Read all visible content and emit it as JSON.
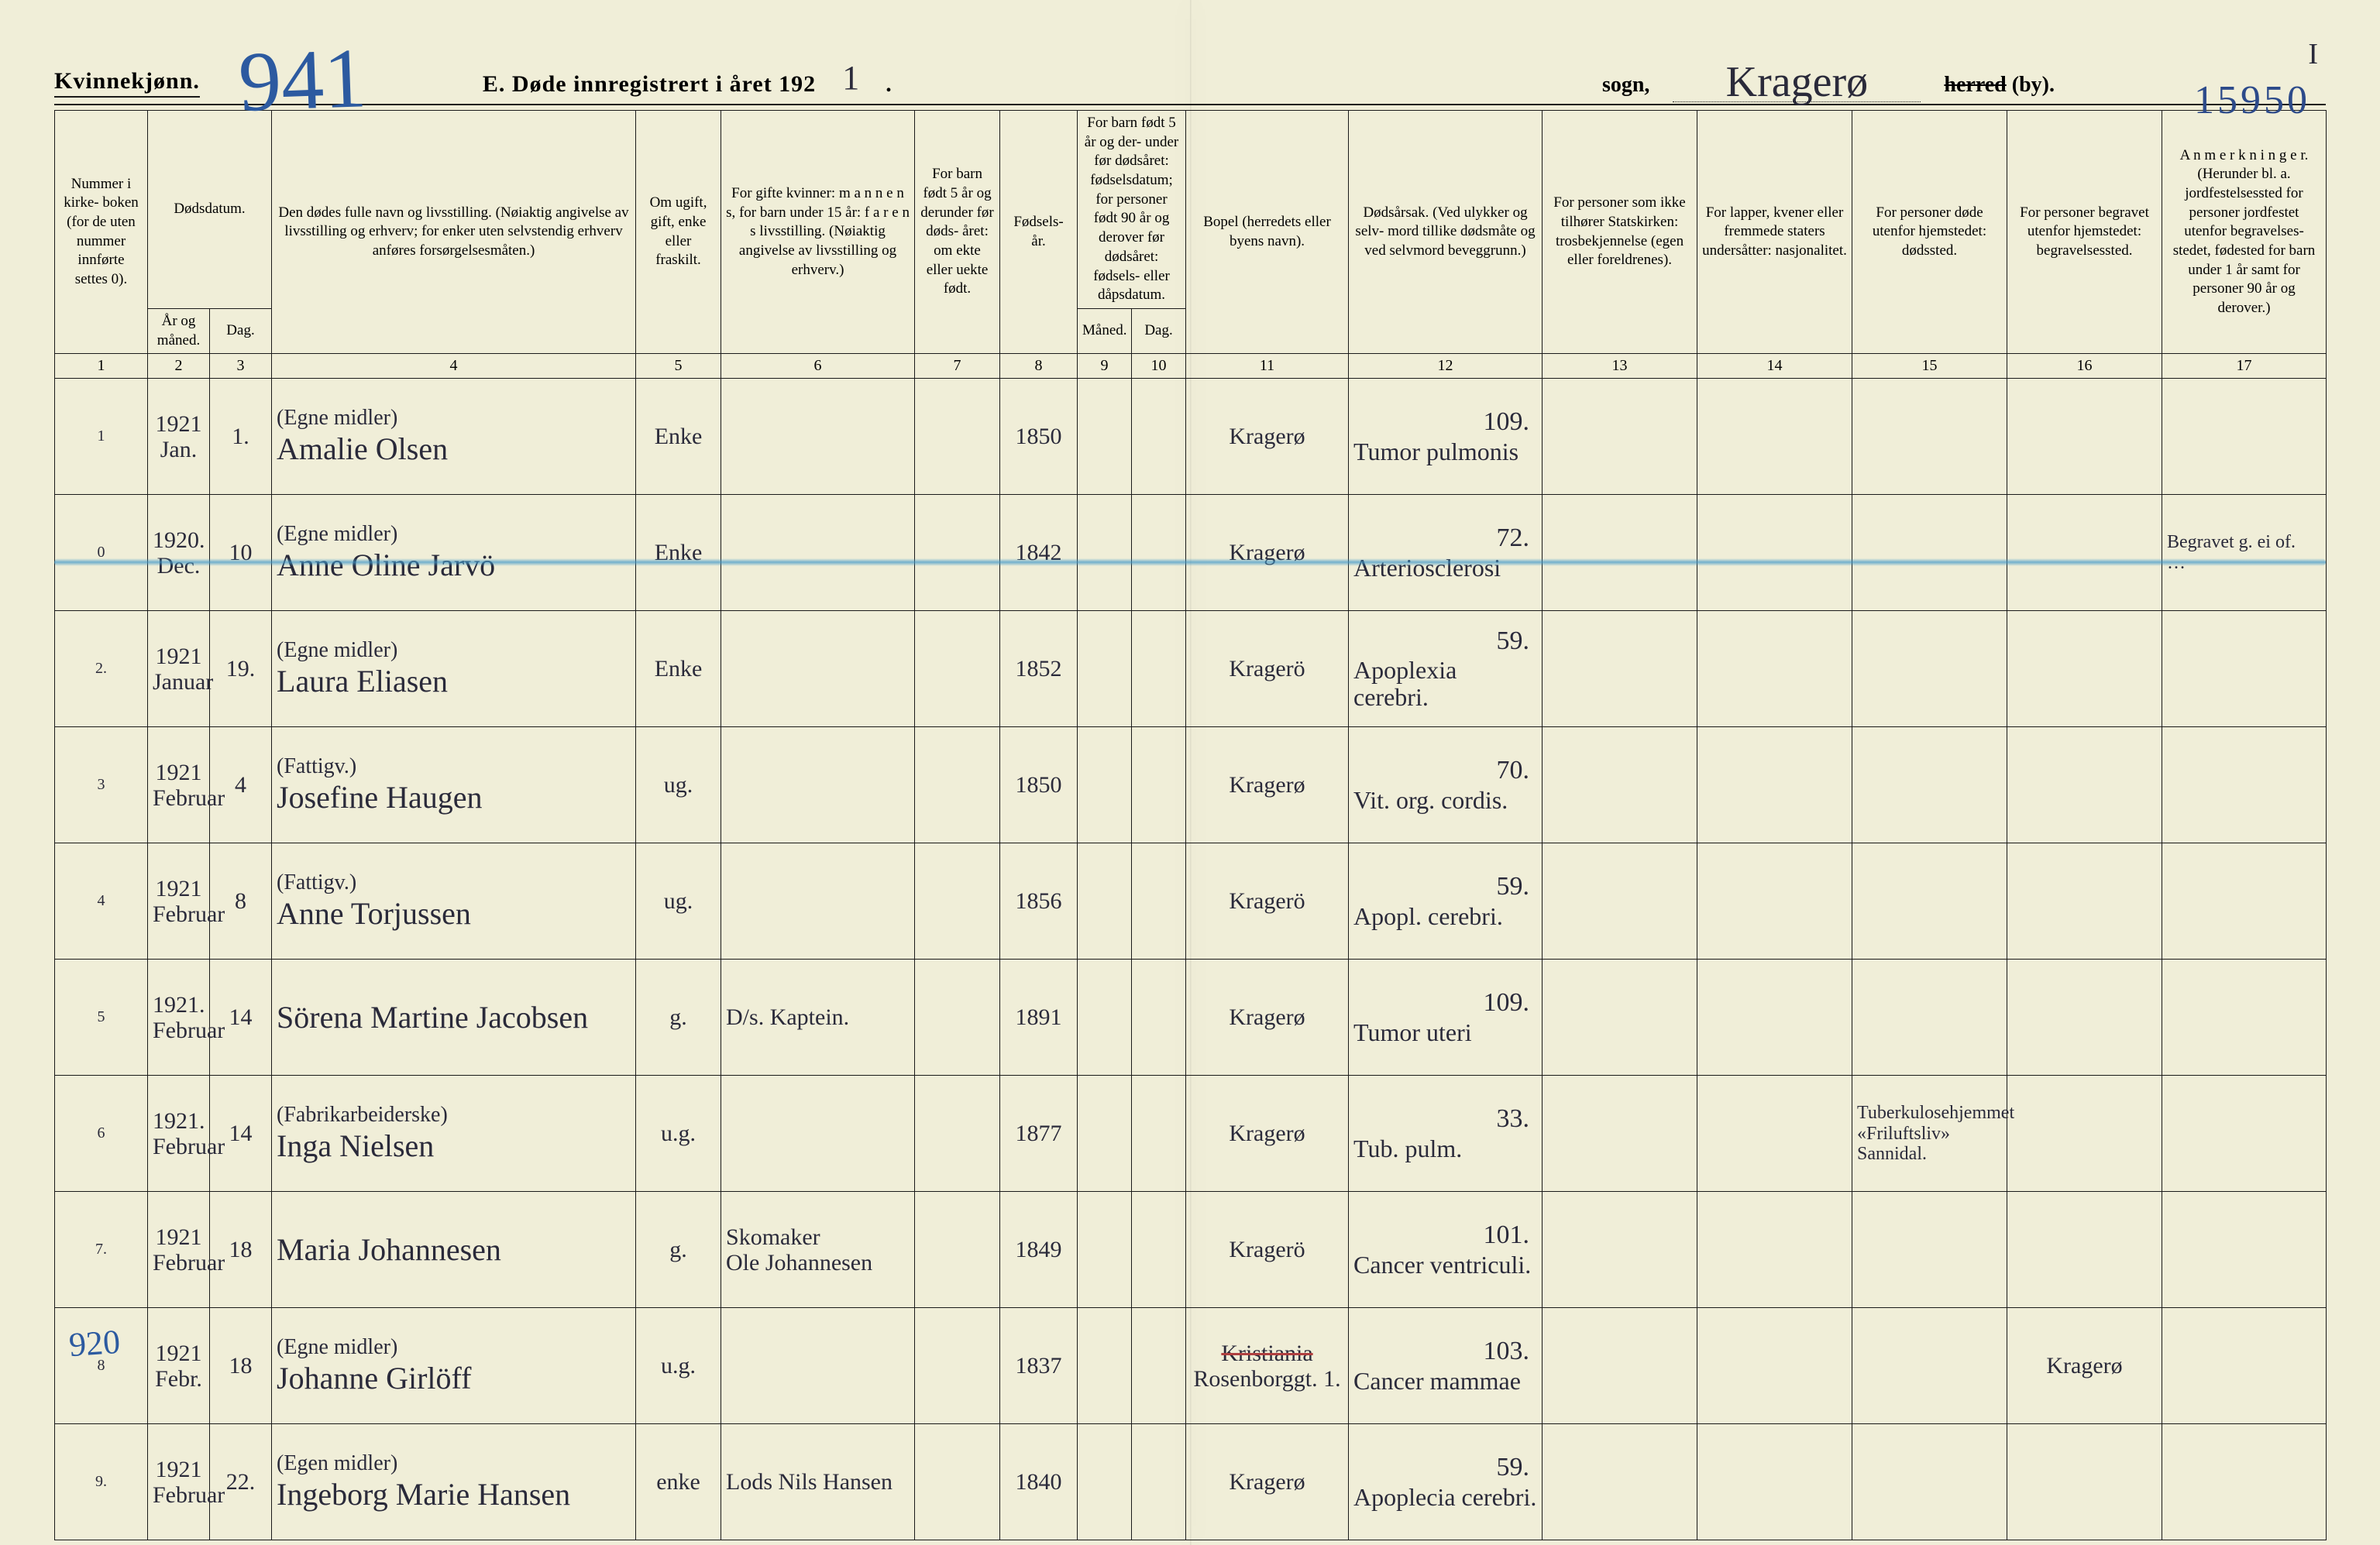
{
  "corner_tr": "I",
  "corner_number": "15950",
  "header": {
    "gender_label": "Kvinnekjønn.",
    "big_number": "941",
    "title_prefix": "E.  Døde innregistrert i året 192",
    "title_year_hand": "1",
    "title_suffix": ".",
    "sogn_label": "sogn,",
    "sogn_value": "Kragerø",
    "herred_strike": "herred",
    "herred_rest": " (by)."
  },
  "columns": {
    "c1": "Nummer i kirke- boken (for de uten nummer innførte settes 0).",
    "c2_3_top": "Dødsdatum.",
    "c2": "År og måned.",
    "c3": "Dag.",
    "c4": "Den dødes fulle navn og livsstilling. (Nøiaktig angivelse av livsstilling og erhverv; for enker uten selvstendig erhverv anføres forsørgelsesmåten.)",
    "c5": "Om ugift, gift, enke eller fraskilt.",
    "c6": "For gifte kvinner: m a n n e n s, for barn under 15 år: f a r e n s  livsstilling. (Nøiaktig angivelse av livsstilling og erhverv.)",
    "c7": "For barn født 5 år og derunder før døds- året: om ekte eller uekte født.",
    "c8": "Fødsels- år.",
    "c9_10_top": "For barn født 5 år og der- under før dødsåret: fødselsdatum; for personer født 90 år og derover før dødsåret: fødsels- eller dåpsdatum.",
    "c9": "Måned.",
    "c10": "Dag.",
    "c11": "Bopel (herredets eller byens navn).",
    "c12": "Dødsårsak. (Ved ulykker og selv- mord tillike dødsmåte og ved selvmord beveggrunn.)",
    "c13": "For personer som ikke tilhører Statskirken: trosbekjennelse (egen eller foreldrenes).",
    "c14": "For lapper, kvener eller fremmede staters undersåtter: nasjonalitet.",
    "c15": "For personer døde utenfor hjemstedet: dødssted.",
    "c16": "For personer begravet utenfor hjemstedet: begravelsessted.",
    "c17": "A n m e r k n i n g e r. (Herunder bl. a. jordfestelsessted for personer jordfestet utenfor begravelses- stedet, fødested for barn under 1 år samt for personer 90 år og derover.)"
  },
  "colnums": [
    "1",
    "2",
    "3",
    "4",
    "5",
    "6",
    "7",
    "8",
    "9",
    "10",
    "11",
    "12",
    "13",
    "14",
    "15",
    "16",
    "17"
  ],
  "rows": [
    {
      "num": "1",
      "year_month": "1921\nJan.",
      "day": "1.",
      "occupation": "(Egne midler)",
      "name": "Amalie Olsen",
      "status": "Enke",
      "spouse": "",
      "legit": "",
      "birth_year": "1850",
      "bmonth": "",
      "bday": "",
      "residence": "Kragerø",
      "age": "109.",
      "cause": "Tumor pulmonis",
      "c13": "",
      "c14": "",
      "c15": "",
      "c16": "",
      "c17": ""
    },
    {
      "num": "0",
      "year_month": "1920.\nDec.",
      "day": "10",
      "occupation": "(Egne midler)",
      "name": "Anne Oline Jarvö",
      "status": "Enke",
      "spouse": "",
      "legit": "",
      "birth_year": "1842",
      "bmonth": "",
      "bday": "",
      "residence": "Kragerø",
      "age": "72.",
      "cause": "Arteriosclerosi",
      "c13": "",
      "c14": "",
      "c15": "",
      "c16": "",
      "c17": "Begravet g. ei of.\n…"
    },
    {
      "num": "2.",
      "year_month": "1921\nJanuar",
      "day": "19.",
      "occupation": "(Egne midler)",
      "name": "Laura Eliasen",
      "status": "Enke",
      "spouse": "",
      "legit": "",
      "birth_year": "1852",
      "bmonth": "",
      "bday": "",
      "residence": "Kragerö",
      "age": "59.",
      "cause": "Apoplexia cerebri.",
      "c13": "",
      "c14": "",
      "c15": "",
      "c16": "",
      "c17": ""
    },
    {
      "num": "3",
      "year_month": "1921\nFebruar",
      "day": "4",
      "occupation": "(Fattigv.)",
      "name": "Josefine Haugen",
      "status": "ug.",
      "spouse": "",
      "legit": "",
      "birth_year": "1850",
      "bmonth": "",
      "bday": "",
      "residence": "Kragerø",
      "age": "70.",
      "cause": "Vit. org. cordis.",
      "c13": "",
      "c14": "",
      "c15": "",
      "c16": "",
      "c17": ""
    },
    {
      "num": "4",
      "year_month": "1921\nFebruar",
      "day": "8",
      "occupation": "(Fattigv.)",
      "name": "Anne Torjussen",
      "status": "ug.",
      "spouse": "",
      "legit": "",
      "birth_year": "1856",
      "bmonth": "",
      "bday": "",
      "residence": "Kragerö",
      "age": "59.",
      "cause": "Apopl. cerebri.",
      "c13": "",
      "c14": "",
      "c15": "",
      "c16": "",
      "c17": ""
    },
    {
      "num": "5",
      "year_month": "1921.\nFebruar",
      "day": "14",
      "occupation": "",
      "name": "Sörena Martine Jacobsen",
      "status": "g.",
      "spouse": "D/s. Kaptein.",
      "legit": "",
      "birth_year": "1891",
      "bmonth": "",
      "bday": "",
      "residence": "Kragerø",
      "age": "109.",
      "cause": "Tumor uteri",
      "c13": "",
      "c14": "",
      "c15": "",
      "c16": "",
      "c17": ""
    },
    {
      "num": "6",
      "year_month": "1921.\nFebruar",
      "day": "14",
      "occupation": "(Fabrikarbeiderske)",
      "name": "Inga Nielsen",
      "status": "u.g.",
      "spouse": "",
      "legit": "",
      "birth_year": "1877",
      "bmonth": "",
      "bday": "",
      "residence": "Kragerø",
      "age": "33.",
      "cause": "Tub. pulm.",
      "c13": "",
      "c14": "",
      "c15": "Tuberkulosehjemmet\n«Friluftsliv»\nSannidal.",
      "c16": "",
      "c17": ""
    },
    {
      "num": "7.",
      "year_month": "1921\nFebruar",
      "day": "18",
      "occupation": "",
      "name": "Maria Johannesen",
      "status": "g.",
      "spouse": "Skomaker\nOle Johannesen",
      "legit": "",
      "birth_year": "1849",
      "bmonth": "",
      "bday": "",
      "residence": "Kragerö",
      "age": "101.",
      "cause": "Cancer ventriculi.",
      "c13": "",
      "c14": "",
      "c15": "",
      "c16": "",
      "c17": ""
    },
    {
      "num": "8",
      "margin": "920",
      "year_month": "1921\nFebr.",
      "day": "18",
      "occupation": "(Egne midler)",
      "name": "Johanne Girlöff",
      "status": "u.g.",
      "spouse": "",
      "legit": "",
      "birth_year": "1837",
      "bmonth": "",
      "bday": "",
      "residence_struck": "Kristiania",
      "residence": "Rosenborggt. 1.",
      "age": "103.",
      "cause": "Cancer mammae",
      "c13": "",
      "c14": "",
      "c15": "",
      "c16": "Kragerø",
      "c17": ""
    },
    {
      "num": "9.",
      "year_month": "1921\nFebruar",
      "day": "22.",
      "occupation": "(Egen midler)",
      "name": "Ingeborg Marie Hansen",
      "status": "enke",
      "spouse": "Lods Nils Hansen",
      "legit": "",
      "birth_year": "1840",
      "bmonth": "",
      "bday": "",
      "residence": "Kragerø",
      "age": "59.",
      "cause": "Apoplecia cerebri.",
      "c13": "",
      "c14": "",
      "c15": "",
      "c16": "",
      "c17": ""
    }
  ]
}
